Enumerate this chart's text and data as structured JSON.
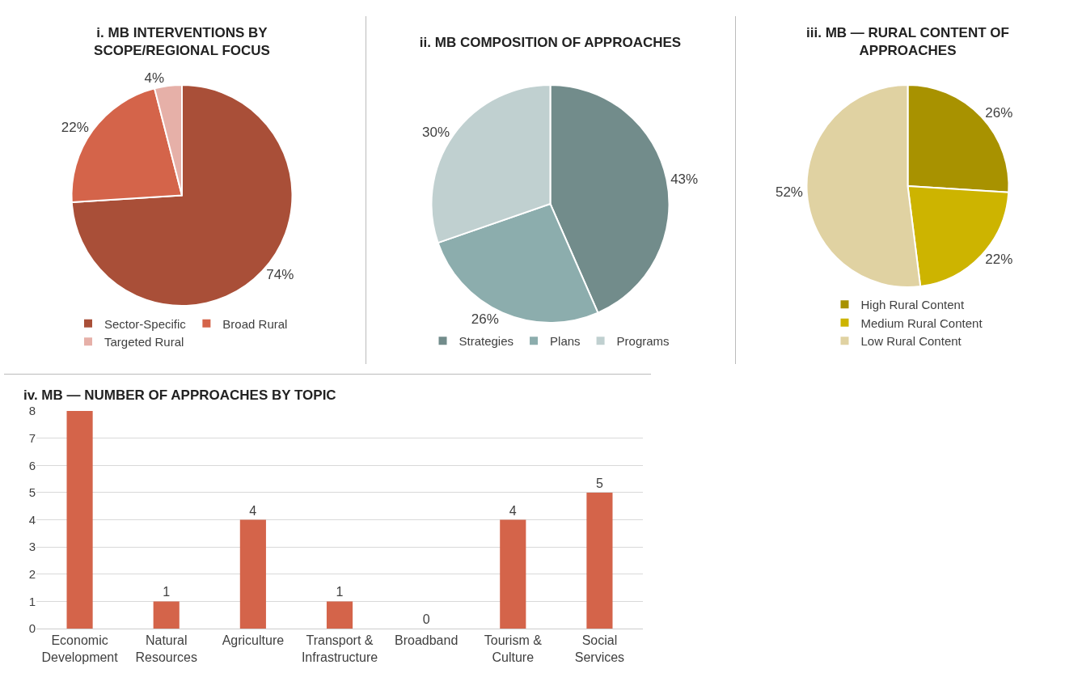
{
  "chart_data": [
    {
      "type": "pie",
      "title": "i. MB INTERVENTIONS BY SCOPE/REGIONAL FOCUS",
      "categories": [
        "Sector-Specific",
        "Broad Rural",
        "Targeted Rural"
      ],
      "values": [
        74,
        22,
        4
      ],
      "colors": [
        "#a94f38",
        "#d4644a",
        "#e6b0a8"
      ],
      "value_labels": [
        "74%",
        "22%",
        "4%"
      ],
      "legend": "bottom"
    },
    {
      "type": "pie",
      "title": "ii. MB COMPOSITION OF APPROACHES",
      "categories": [
        "Strategies",
        "Plans",
        "Programs"
      ],
      "values": [
        43,
        26,
        30
      ],
      "colors": [
        "#728c8b",
        "#8cadad",
        "#c0d0d0"
      ],
      "value_labels": [
        "43%",
        "26%",
        "30%"
      ],
      "legend": "bottom"
    },
    {
      "type": "pie",
      "title": "iii. MB — RURAL CONTENT OF APPROACHES",
      "categories": [
        "High Rural Content",
        "Medium Rural Content",
        "Low Rural Content"
      ],
      "values": [
        26,
        22,
        52
      ],
      "colors": [
        "#a89200",
        "#cdb400",
        "#e0d2a2"
      ],
      "value_labels": [
        "26%",
        "22%",
        "52%"
      ],
      "legend": "bottom"
    },
    {
      "type": "bar",
      "title": "iv. MB — NUMBER OF APPROACHES BY TOPIC",
      "categories": [
        "Economic Development",
        "Natural Resources",
        "Agriculture",
        "Transport & Infrastructure",
        "Broadband",
        "Tourism & Culture",
        "Social Services"
      ],
      "values": [
        8,
        1,
        4,
        1,
        0,
        4,
        5
      ],
      "color": "#d4644a",
      "value_labels": [
        null,
        "1",
        "4",
        "1",
        "0",
        "4",
        "5"
      ],
      "ylim": [
        0,
        8
      ],
      "yticks": [
        0,
        1,
        2,
        3,
        4,
        5,
        6,
        7,
        8
      ],
      "grid": "y",
      "legend": false
    }
  ]
}
